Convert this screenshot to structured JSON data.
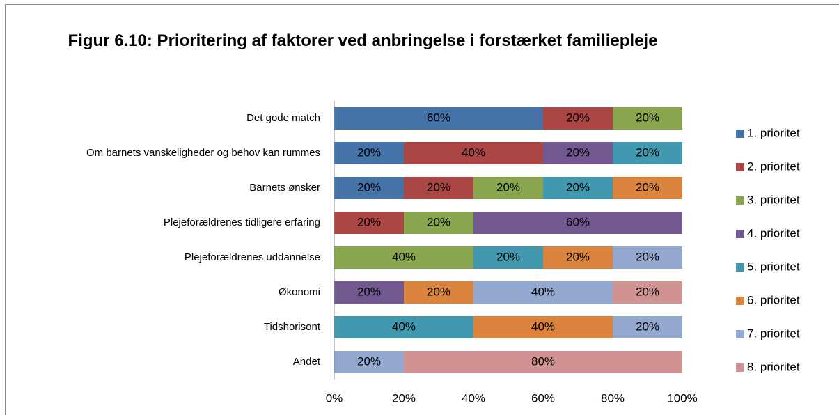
{
  "chart_data": {
    "type": "stacked-barh",
    "title": "Figur 6.10: Prioritering af faktorer ved anbringelse i forstærket familiepleje",
    "categories": [
      "Det gode match",
      "Om barnets vanskeligheder og behov kan rummes",
      "Barnets ønsker",
      "Plejeforældrenes tidligere erfaring",
      "Plejeforældrenes uddannelse",
      "Økonomi",
      "Tidshorisont",
      "Andet"
    ],
    "series": [
      {
        "name": "1. prioritet",
        "color": "#4572a7",
        "values": [
          60,
          20,
          20,
          0,
          0,
          0,
          0,
          0
        ],
        "value_labels": [
          "60%",
          "20%",
          "20%",
          null,
          null,
          null,
          null,
          null
        ]
      },
      {
        "name": "2. prioritet",
        "color": "#aa4643",
        "values": [
          20,
          40,
          20,
          20,
          0,
          0,
          0,
          0
        ],
        "value_labels": [
          "20%",
          "40%",
          "20%",
          "20%",
          null,
          null,
          null,
          null
        ]
      },
      {
        "name": "3. prioritet",
        "color": "#89a54e",
        "values": [
          20,
          0,
          20,
          20,
          40,
          0,
          0,
          0
        ],
        "value_labels": [
          "20%",
          null,
          "20%",
          "20%",
          "40%",
          null,
          null,
          null
        ]
      },
      {
        "name": "4. prioritet",
        "color": "#71588f",
        "values": [
          0,
          20,
          0,
          60,
          0,
          20,
          0,
          0
        ],
        "value_labels": [
          null,
          "20%",
          null,
          "60%",
          null,
          "20%",
          null,
          null
        ]
      },
      {
        "name": "5. prioritet",
        "color": "#4198af",
        "values": [
          0,
          20,
          20,
          0,
          20,
          0,
          40,
          0
        ],
        "value_labels": [
          null,
          "20%",
          "20%",
          null,
          "20%",
          null,
          "40%",
          null
        ]
      },
      {
        "name": "6. prioritet",
        "color": "#db843d",
        "values": [
          0,
          0,
          20,
          0,
          20,
          20,
          40,
          0
        ],
        "value_labels": [
          null,
          null,
          "20%",
          null,
          "20%",
          "20%",
          "40%",
          null
        ]
      },
      {
        "name": "7. prioritet",
        "color": "#93a9cf",
        "values": [
          0,
          0,
          0,
          0,
          20,
          40,
          20,
          20
        ],
        "value_labels": [
          null,
          null,
          null,
          null,
          "20%",
          "40%",
          "20%",
          "20%"
        ]
      },
      {
        "name": "8. prioritet",
        "color": "#d19392",
        "values": [
          0,
          0,
          0,
          0,
          0,
          20,
          0,
          80
        ],
        "value_labels": [
          null,
          null,
          null,
          null,
          null,
          "20%",
          null,
          "80%"
        ]
      }
    ],
    "xlim": [
      0,
      100
    ],
    "xticks": [
      {
        "value": 0,
        "label": "0%"
      },
      {
        "value": 20,
        "label": "20%"
      },
      {
        "value": 40,
        "label": "40%"
      },
      {
        "value": 60,
        "label": "60%"
      },
      {
        "value": 80,
        "label": "80%"
      },
      {
        "value": 100,
        "label": "100%"
      }
    ],
    "grid": false,
    "legend": "right"
  }
}
